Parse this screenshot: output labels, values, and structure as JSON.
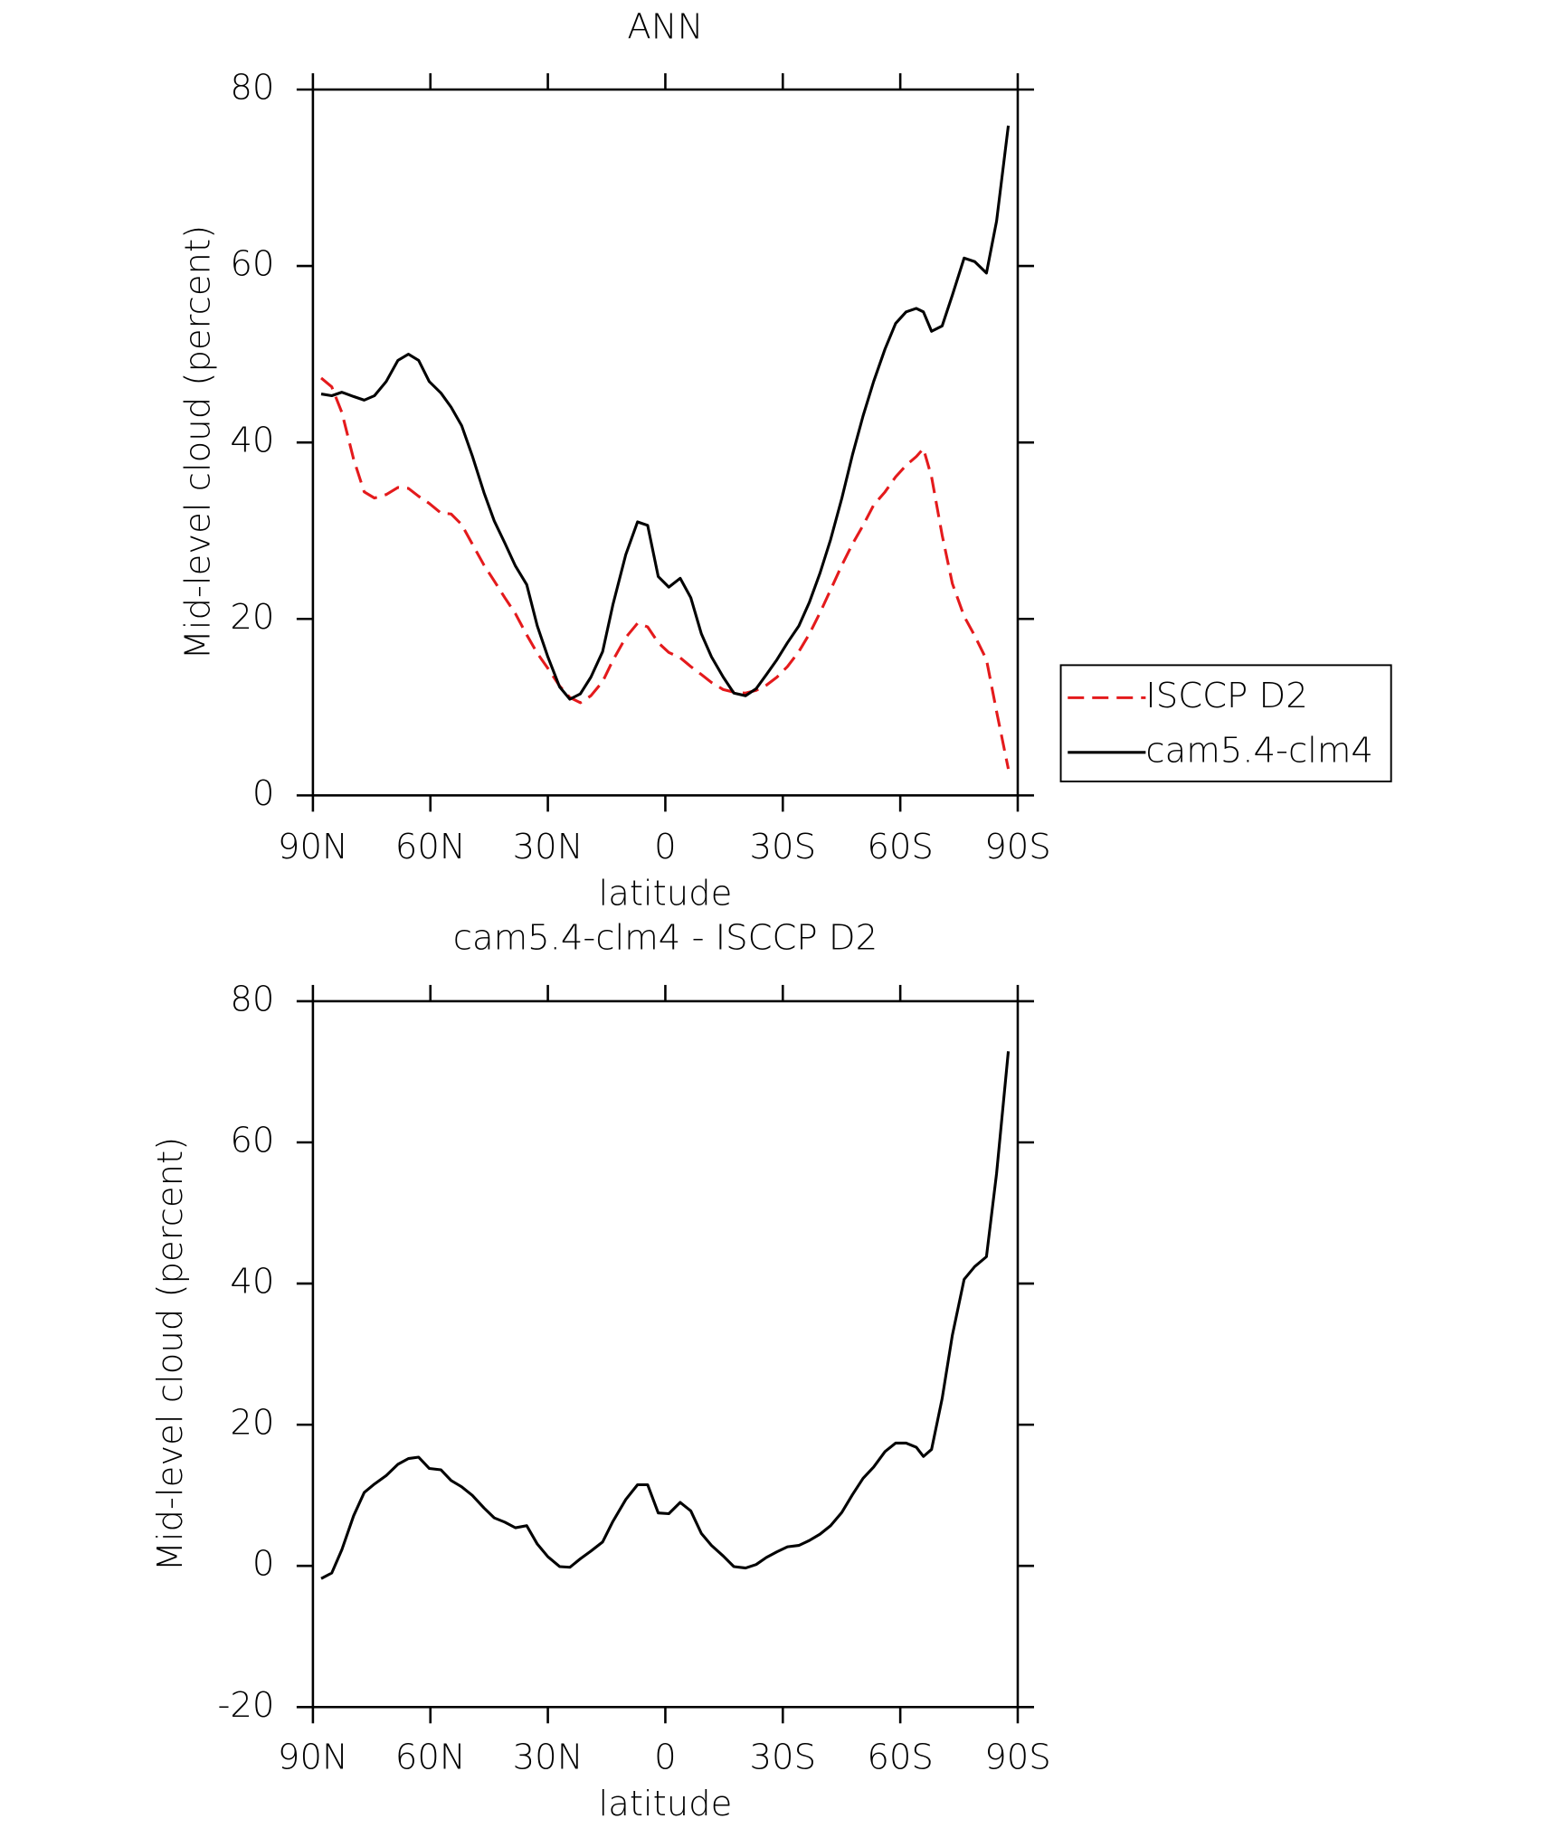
{
  "chart_data": [
    {
      "type": "line",
      "title": "ANN",
      "xlabel": "latitude",
      "ylabel": "Mid-level cloud (percent)",
      "x": [
        87.9,
        85.2,
        82.6,
        79.6,
        76.9,
        74.3,
        71.3,
        68.3,
        65.6,
        63.0,
        60.3,
        57.3,
        54.7,
        52.0,
        49.3,
        46.3,
        43.7,
        41.0,
        38.3,
        35.4,
        32.7,
        30.0,
        27.0,
        24.4,
        21.7,
        19.0,
        16.0,
        13.4,
        10.1,
        7.1,
        4.5,
        1.8,
        -0.9,
        -3.8,
        -6.5,
        -9.2,
        -11.8,
        -14.8,
        -17.5,
        -20.5,
        -23.2,
        -25.8,
        -28.5,
        -31.2,
        -34.1,
        -36.8,
        -39.5,
        -42.2,
        -45.1,
        -47.8,
        -50.5,
        -53.2,
        -56.1,
        -58.8,
        -61.5,
        -64.1,
        -65.9,
        -68.0,
        -70.7,
        -73.3,
        -76.3,
        -79.0,
        -82.0,
        -84.6,
        -87.6
      ],
      "series": [
        {
          "name": "ISCCP D2",
          "color": "#e41a1c",
          "dash": true,
          "values": [
            47.3,
            46.3,
            43.4,
            38.1,
            34.4,
            33.7,
            34.1,
            34.9,
            34.8,
            33.9,
            33.1,
            32.0,
            31.9,
            30.7,
            28.5,
            26.1,
            24.3,
            22.4,
            20.6,
            18.2,
            16.1,
            14.4,
            12.4,
            11.1,
            10.5,
            11.3,
            12.9,
            15.3,
            17.9,
            19.5,
            19.1,
            17.3,
            16.2,
            15.6,
            14.6,
            13.7,
            12.8,
            12.0,
            11.7,
            11.6,
            11.9,
            12.5,
            13.4,
            14.6,
            16.3,
            18.3,
            20.7,
            23.3,
            26.1,
            28.5,
            30.6,
            32.9,
            34.4,
            36.1,
            37.4,
            38.4,
            39.3,
            36.1,
            29.5,
            24.0,
            20.3,
            18.1,
            15.4,
            9.5,
            3.0
          ]
        },
        {
          "name": "cam5.4-clm4",
          "color": "#000000",
          "dash": false,
          "values": [
            45.5,
            45.3,
            45.7,
            45.2,
            44.8,
            45.3,
            46.9,
            49.3,
            50.0,
            49.3,
            46.9,
            45.6,
            44.0,
            41.9,
            38.5,
            34.3,
            31.1,
            28.6,
            26.0,
            23.9,
            19.2,
            15.7,
            12.3,
            10.9,
            11.5,
            13.4,
            16.3,
            21.6,
            27.3,
            31.0,
            30.6,
            24.8,
            23.6,
            24.6,
            22.4,
            18.3,
            15.7,
            13.4,
            11.6,
            11.3,
            12.1,
            13.7,
            15.4,
            17.3,
            19.2,
            21.9,
            25.2,
            29.0,
            33.7,
            38.6,
            43.0,
            46.9,
            50.6,
            53.5,
            54.8,
            55.2,
            54.8,
            52.6,
            53.2,
            56.7,
            60.9,
            60.5,
            59.2,
            65.1,
            75.9
          ]
        }
      ],
      "xlim": [
        90,
        -90
      ],
      "xticks": [
        {
          "value": 90,
          "label": "90N"
        },
        {
          "value": 60,
          "label": "60N"
        },
        {
          "value": 30,
          "label": "30N"
        },
        0,
        {
          "value": -30,
          "label": "30S"
        },
        {
          "value": -60,
          "label": "60S"
        },
        {
          "value": -90,
          "label": "90S"
        }
      ],
      "ylim": [
        0,
        80
      ],
      "yticks": [
        0,
        20,
        40,
        60,
        80
      ],
      "grid": false,
      "legend": "right"
    },
    {
      "type": "line",
      "title": "cam5.4-clm4 - ISCCP D2",
      "xlabel": "latitude",
      "ylabel": "Mid-level cloud (percent)",
      "x": [
        87.9,
        85.2,
        82.6,
        79.6,
        76.9,
        74.3,
        71.3,
        68.3,
        65.6,
        63.0,
        60.3,
        57.3,
        54.7,
        52.0,
        49.3,
        46.3,
        43.7,
        41.0,
        38.3,
        35.4,
        32.7,
        30.0,
        27.0,
        24.4,
        21.7,
        19.0,
        16.0,
        13.4,
        10.1,
        7.1,
        4.5,
        1.8,
        -0.9,
        -3.8,
        -6.5,
        -9.2,
        -11.8,
        -14.8,
        -17.5,
        -20.5,
        -23.2,
        -25.8,
        -28.5,
        -31.2,
        -34.1,
        -36.8,
        -39.5,
        -42.2,
        -45.1,
        -47.8,
        -50.5,
        -53.2,
        -56.1,
        -58.8,
        -61.5,
        -64.1,
        -65.9,
        -68.0,
        -70.7,
        -73.3,
        -76.3,
        -79.0,
        -82.0,
        -84.6,
        -87.6
      ],
      "series": [
        {
          "color": "#000000",
          "dash": false,
          "values": [
            -1.8,
            -1.0,
            2.3,
            7.1,
            10.4,
            11.6,
            12.8,
            14.4,
            15.2,
            15.4,
            13.8,
            13.6,
            12.1,
            11.2,
            10.0,
            8.2,
            6.8,
            6.2,
            5.4,
            5.7,
            3.1,
            1.3,
            -0.1,
            -0.2,
            1.0,
            2.1,
            3.4,
            6.3,
            9.4,
            11.5,
            11.5,
            7.5,
            7.4,
            9.0,
            7.8,
            4.6,
            2.9,
            1.4,
            -0.1,
            -0.3,
            0.2,
            1.2,
            2.0,
            2.7,
            2.9,
            3.6,
            4.5,
            5.7,
            7.6,
            10.1,
            12.4,
            14.0,
            16.2,
            17.4,
            17.4,
            16.8,
            15.5,
            16.5,
            23.7,
            32.7,
            40.6,
            42.4,
            43.8,
            55.6,
            72.9
          ]
        }
      ],
      "xlim": [
        90,
        -90
      ],
      "xticks": [
        {
          "value": 90,
          "label": "90N"
        },
        {
          "value": 60,
          "label": "60N"
        },
        {
          "value": 30,
          "label": "30N"
        },
        0,
        {
          "value": -30,
          "label": "30S"
        },
        {
          "value": -60,
          "label": "60S"
        },
        {
          "value": -90,
          "label": "90S"
        }
      ],
      "ylim": [
        -20,
        80
      ],
      "yticks": [
        -20,
        0,
        20,
        40,
        60,
        80
      ],
      "grid": false
    }
  ]
}
